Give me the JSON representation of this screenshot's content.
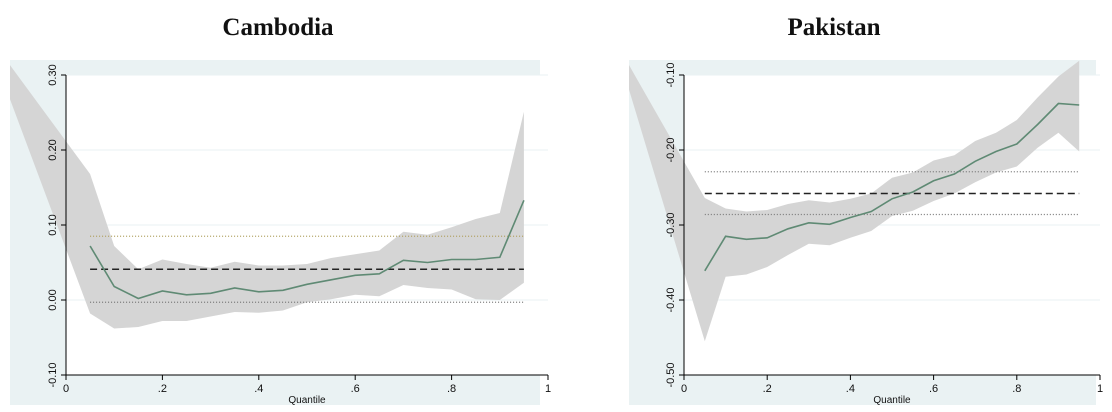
{
  "chart_data": [
    {
      "type": "line",
      "title": "Cambodia",
      "xlabel": "Quantile",
      "ylabel": "",
      "xlim": [
        0,
        1
      ],
      "ylim": [
        -0.1,
        0.3
      ],
      "x_ticks": [
        0,
        0.2,
        0.4,
        0.6,
        0.8,
        1
      ],
      "x_tick_labels": [
        "0",
        ".2",
        ".4",
        ".6",
        ".8",
        "1"
      ],
      "y_ticks": [
        -0.1,
        0.0,
        0.1,
        0.2,
        0.3
      ],
      "y_tick_labels": [
        "-0.10",
        "0.00",
        "0.10",
        "0.20",
        "0.30"
      ],
      "x": [
        0.05,
        0.1,
        0.15,
        0.2,
        0.25,
        0.3,
        0.35,
        0.4,
        0.45,
        0.5,
        0.55,
        0.6,
        0.65,
        0.7,
        0.75,
        0.8,
        0.85,
        0.9,
        0.95
      ],
      "series": [
        {
          "values": [
            0.072,
            0.018,
            0.002,
            0.012,
            0.007,
            0.009,
            0.016,
            0.011,
            0.013,
            0.021,
            0.027,
            0.033,
            0.035,
            0.053,
            0.05,
            0.054,
            0.054,
            0.057,
            0.133
          ]
        }
      ],
      "ci_upper": [
        0.168,
        0.072,
        0.041,
        0.054,
        0.048,
        0.043,
        0.051,
        0.046,
        0.046,
        0.048,
        0.056,
        0.061,
        0.066,
        0.091,
        0.087,
        0.097,
        0.108,
        0.116,
        0.251
      ],
      "ci_lower": [
        -0.018,
        -0.038,
        -0.036,
        -0.028,
        -0.028,
        -0.022,
        -0.016,
        -0.017,
        -0.014,
        -0.003,
        0.001,
        0.007,
        0.005,
        0.02,
        0.016,
        0.014,
        0.001,
        0.0,
        0.023
      ],
      "ci_extension": {
        "x0": -0.17,
        "upper0": 0.36,
        "lower0": 0.36
      },
      "ols_estimate": 0.041,
      "ols_ci": [
        -0.003,
        0.085
      ],
      "colors": {
        "band": "#d5d5d5",
        "line": "#5f8a74",
        "background": "#eaf2f3",
        "plot": "#ffffff",
        "ols_ci_upper": "#777777",
        "ols_ci_lower": "#b0a060"
      }
    },
    {
      "type": "line",
      "title": "Pakistan",
      "xlabel": "Quantile",
      "ylabel": "",
      "xlim": [
        0,
        1
      ],
      "ylim": [
        -0.5,
        -0.1
      ],
      "x_ticks": [
        0,
        0.2,
        0.4,
        0.6,
        0.8,
        1
      ],
      "x_tick_labels": [
        "0",
        ".2",
        ".4",
        ".6",
        ".8",
        "1"
      ],
      "y_ticks": [
        -0.5,
        -0.4,
        -0.3,
        -0.2,
        -0.1
      ],
      "y_tick_labels": [
        "-0.50",
        "-0.40",
        "-0.30",
        "-0.20",
        "-0.10"
      ],
      "x": [
        0.05,
        0.1,
        0.15,
        0.2,
        0.25,
        0.3,
        0.35,
        0.4,
        0.45,
        0.5,
        0.55,
        0.6,
        0.65,
        0.7,
        0.75,
        0.8,
        0.85,
        0.9,
        0.95
      ],
      "series": [
        {
          "values": [
            -0.361,
            -0.315,
            -0.319,
            -0.317,
            -0.305,
            -0.297,
            -0.299,
            -0.29,
            -0.282,
            -0.265,
            -0.256,
            -0.241,
            -0.232,
            -0.215,
            -0.202,
            -0.192,
            -0.166,
            -0.138,
            -0.14
          ]
        }
      ],
      "ci_upper": [
        -0.264,
        -0.278,
        -0.282,
        -0.28,
        -0.272,
        -0.267,
        -0.27,
        -0.265,
        -0.258,
        -0.237,
        -0.23,
        -0.214,
        -0.207,
        -0.188,
        -0.177,
        -0.16,
        -0.13,
        -0.102,
        -0.081
      ],
      "ci_lower": [
        -0.455,
        -0.369,
        -0.366,
        -0.356,
        -0.34,
        -0.325,
        -0.327,
        -0.317,
        -0.308,
        -0.288,
        -0.281,
        -0.268,
        -0.258,
        -0.243,
        -0.23,
        -0.222,
        -0.197,
        -0.177,
        -0.202
      ],
      "ci_extension": {
        "x0": -0.17,
        "upper0": -0.05,
        "lower0": -0.05
      },
      "ols_estimate": -0.258,
      "ols_ci": [
        -0.229,
        -0.286
      ],
      "colors": {
        "band": "#d5d5d5",
        "line": "#5f8a74",
        "background": "#eaf2f3",
        "plot": "#ffffff",
        "ols_ci_upper": "#777777",
        "ols_ci_lower": "#777777"
      }
    }
  ]
}
